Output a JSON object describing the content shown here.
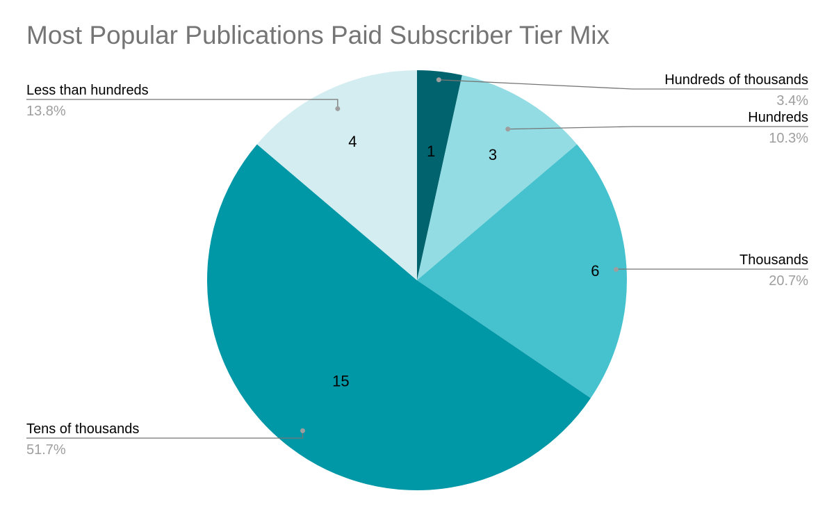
{
  "chart_data": {
    "type": "pie",
    "title": "Most Popular Publications Paid Subscriber Tier Mix",
    "slices": [
      {
        "label": "Hundreds of thousands",
        "value": 1,
        "percent": "3.4%",
        "color": "#00636e"
      },
      {
        "label": "Hundreds",
        "value": 3,
        "percent": "10.3%",
        "color": "#93dce3"
      },
      {
        "label": "Thousands",
        "value": 6,
        "percent": "20.7%",
        "color": "#46c2ce"
      },
      {
        "label": "Tens of thousands",
        "value": 15,
        "percent": "51.7%",
        "color": "#0097a7"
      },
      {
        "label": "Less than hundreds",
        "value": 4,
        "percent": "13.8%",
        "color": "#d3edf1"
      }
    ],
    "start_angle_deg": 0,
    "direction": "clockwise",
    "legend": "leader-line labels"
  }
}
